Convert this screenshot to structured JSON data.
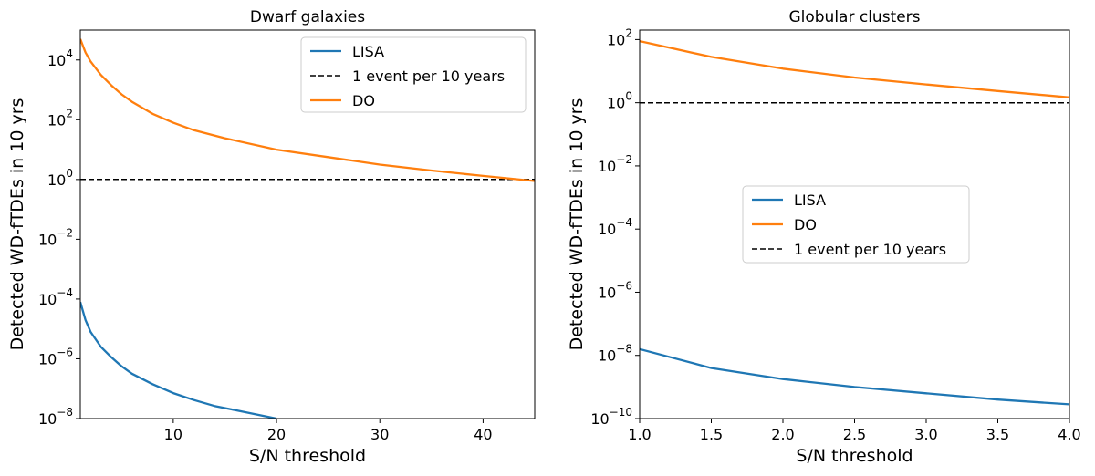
{
  "chart_data": [
    {
      "type": "line",
      "title": "Dwarf galaxies",
      "xlabel": "S/N threshold",
      "ylabel": "Detected WD-fTDEs in 10 yrs",
      "xlim": [
        1,
        45
      ],
      "ylim_log10": [
        -8,
        5
      ],
      "x_ticks": [
        {
          "value": 10,
          "label": "10"
        },
        {
          "value": 20,
          "label": "20"
        },
        {
          "value": 30,
          "label": "30"
        },
        {
          "value": 40,
          "label": "40"
        }
      ],
      "y_ticks": [
        {
          "exp": 4,
          "base": "10",
          "sup": "4"
        },
        {
          "exp": 2,
          "base": "10",
          "sup": "2"
        },
        {
          "exp": 0,
          "base": "10",
          "sup": "0"
        },
        {
          "exp": -2,
          "base": "10",
          "sup": "−2"
        },
        {
          "exp": -4,
          "base": "10",
          "sup": "−4"
        },
        {
          "exp": -6,
          "base": "10",
          "sup": "−6"
        },
        {
          "exp": -8,
          "base": "10",
          "sup": "−8"
        }
      ],
      "legend_position": "top-right",
      "series": [
        {
          "name": "LISA",
          "color": "#1f77b4",
          "style": "solid",
          "x": [
            1,
            1.5,
            2,
            3,
            4,
            5,
            6,
            8,
            10,
            12,
            14,
            16,
            18,
            20
          ],
          "log10_y": [
            -4.1,
            -4.7,
            -5.1,
            -5.6,
            -5.95,
            -6.25,
            -6.5,
            -6.85,
            -7.15,
            -7.38,
            -7.58,
            -7.72,
            -7.86,
            -8.0
          ]
        },
        {
          "name": "1 event per 10 years",
          "color": "#000000",
          "style": "dashed",
          "x": [
            1,
            45
          ],
          "log10_y": [
            0,
            0
          ]
        },
        {
          "name": "DO",
          "color": "#ff7f0e",
          "style": "solid",
          "x": [
            1,
            1.5,
            2,
            3,
            4,
            5,
            6,
            8,
            10,
            12,
            15,
            20,
            25,
            30,
            35,
            40,
            45
          ],
          "log10_y": [
            4.7,
            4.25,
            3.95,
            3.5,
            3.15,
            2.85,
            2.6,
            2.2,
            1.9,
            1.65,
            1.38,
            1.0,
            0.75,
            0.5,
            0.3,
            0.12,
            -0.05
          ]
        }
      ]
    },
    {
      "type": "line",
      "title": "Globular clusters",
      "xlabel": "S/N threshold",
      "ylabel": "Detected WD-fTDEs in 10 yrs",
      "xlim": [
        1.0,
        4.0
      ],
      "ylim_log10": [
        -10,
        2.3
      ],
      "x_ticks": [
        {
          "value": 1.0,
          "label": "1.0"
        },
        {
          "value": 1.5,
          "label": "1.5"
        },
        {
          "value": 2.0,
          "label": "2.0"
        },
        {
          "value": 2.5,
          "label": "2.5"
        },
        {
          "value": 3.0,
          "label": "3.0"
        },
        {
          "value": 3.5,
          "label": "3.5"
        },
        {
          "value": 4.0,
          "label": "4.0"
        }
      ],
      "y_ticks": [
        {
          "exp": 2,
          "base": "10",
          "sup": "2"
        },
        {
          "exp": 0,
          "base": "10",
          "sup": "0"
        },
        {
          "exp": -2,
          "base": "10",
          "sup": "−2"
        },
        {
          "exp": -4,
          "base": "10",
          "sup": "−4"
        },
        {
          "exp": -6,
          "base": "10",
          "sup": "−6"
        },
        {
          "exp": -8,
          "base": "10",
          "sup": "−8"
        },
        {
          "exp": -10,
          "base": "10",
          "sup": "−10"
        }
      ],
      "legend_position": "center",
      "series": [
        {
          "name": "LISA",
          "color": "#1f77b4",
          "style": "solid",
          "x": [
            1.0,
            1.25,
            1.5,
            2.0,
            2.5,
            3.0,
            3.5,
            4.0
          ],
          "log10_y": [
            -7.8,
            -8.1,
            -8.4,
            -8.75,
            -9.0,
            -9.2,
            -9.4,
            -9.55
          ]
        },
        {
          "name": "DO",
          "color": "#ff7f0e",
          "style": "solid",
          "x": [
            1.0,
            1.25,
            1.5,
            2.0,
            2.5,
            3.0,
            3.5,
            4.0
          ],
          "log10_y": [
            1.95,
            1.7,
            1.45,
            1.08,
            0.8,
            0.58,
            0.37,
            0.17
          ]
        },
        {
          "name": "1 event per 10 years",
          "color": "#000000",
          "style": "dashed",
          "x": [
            1.0,
            4.0
          ],
          "log10_y": [
            0,
            0
          ]
        }
      ]
    }
  ]
}
